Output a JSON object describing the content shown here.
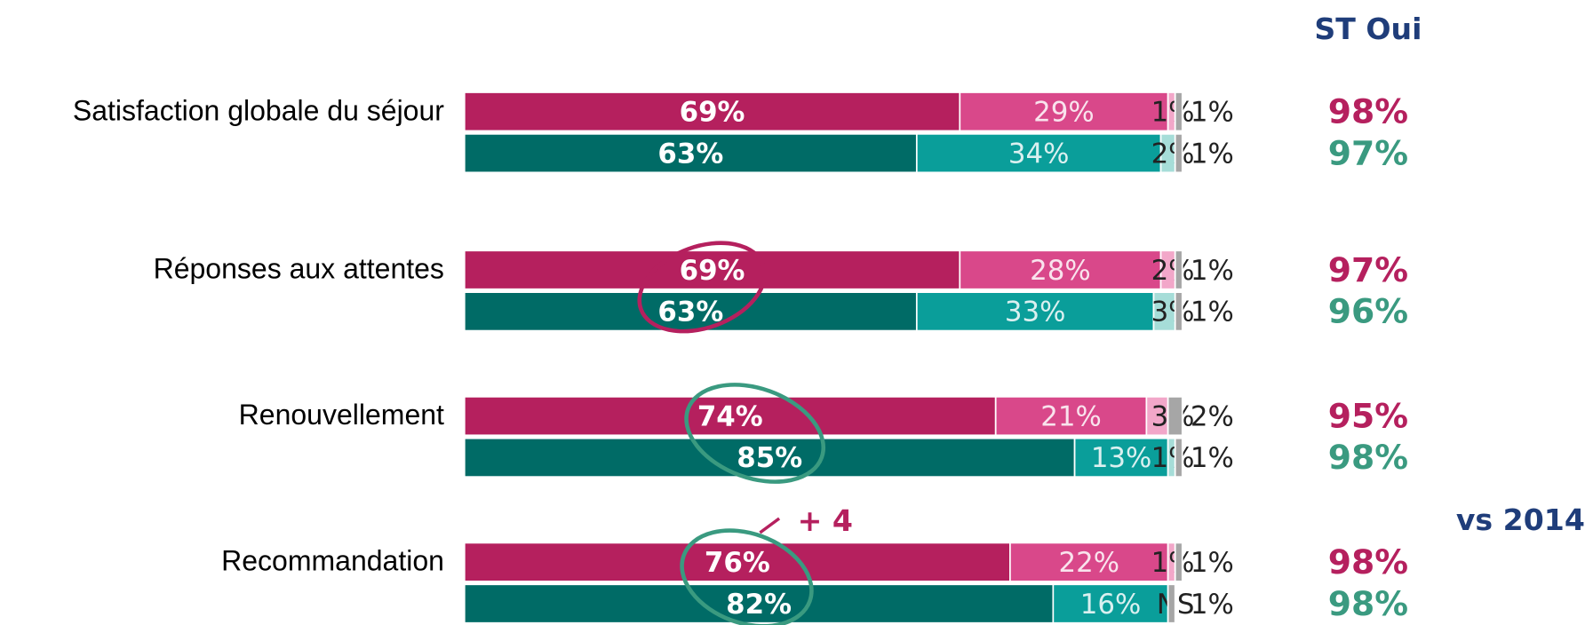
{
  "chart_data": {
    "type": "stacked-bar",
    "categories": [
      "Satisfaction globale du séjour",
      "Réponses aux attentes",
      "Renouvellement",
      "Recommandation"
    ],
    "xlim": [
      0,
      100
    ],
    "total_title": "ST Oui",
    "series": [
      {
        "colors": [
          "#b5205e",
          "#d9488a",
          "#f2a7c9",
          "#a6a6a6"
        ],
        "total_color": "#b5205e",
        "segments": [
          {
            "values": [
              69,
              69,
              74,
              76
            ],
            "value_labels": [
              "69%",
              "69%",
              "74%",
              "76%"
            ]
          },
          {
            "values": [
              29,
              28,
              21,
              22
            ],
            "value_labels": [
              "29%",
              "28%",
              "21%",
              "22%"
            ]
          },
          {
            "values": [
              1,
              2,
              3,
              1
            ],
            "value_labels": [
              "1%",
              "2%",
              "3%",
              "1%"
            ]
          },
          {
            "values": [
              1,
              1,
              2,
              1
            ],
            "value_labels": [
              "1%",
              "1%",
              "2%",
              "1%"
            ]
          }
        ],
        "totals": {
          "values": [
            98,
            97,
            95,
            98
          ],
          "value_labels": [
            "98%",
            "97%",
            "95%",
            "98%"
          ]
        }
      },
      {
        "colors": [
          "#006b66",
          "#0a9e9a",
          "#a6ddd8",
          "#a6a6a6"
        ],
        "total_color": "#3a9a80",
        "segments": [
          {
            "values": [
              63,
              63,
              85,
              82
            ],
            "value_labels": [
              "63%",
              "63%",
              "85%",
              "82%"
            ]
          },
          {
            "values": [
              34,
              33,
              13,
              16
            ],
            "value_labels": [
              "34%",
              "33%",
              "13%",
              "16%"
            ]
          },
          {
            "values": [
              2,
              3,
              1,
              null
            ],
            "value_labels": [
              "2%",
              "3%",
              "1%",
              "NS"
            ]
          },
          {
            "values": [
              1,
              1,
              1,
              1
            ],
            "value_labels": [
              "1%",
              "1%",
              "1%",
              "1%"
            ]
          }
        ],
        "totals": {
          "values": [
            97,
            96,
            98,
            98
          ],
          "value_labels": [
            "97%",
            "96%",
            "98%",
            "98%"
          ]
        }
      }
    ],
    "annotations": [
      "+ 4",
      "vs 2014"
    ]
  }
}
